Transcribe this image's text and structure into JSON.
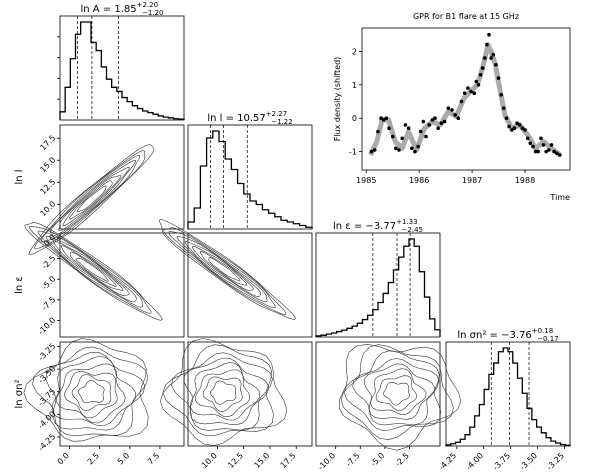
{
  "corner": {
    "params": [
      {
        "label": "ln A",
        "title_main": "ln A = 1.85",
        "title_sup": "+2.20",
        "title_sub": "−1.20",
        "range": [
          -0.8,
          9.5
        ],
        "ticks": [
          "0.0",
          "2.5",
          "5.0",
          "7.5"
        ],
        "tick_vals": [
          0,
          2.5,
          5,
          7.5
        ],
        "quantiles": [
          0.65,
          1.85,
          4.05
        ],
        "hist": [
          2,
          8,
          15,
          21,
          24,
          24,
          19,
          17,
          13,
          10,
          8,
          7,
          5.5,
          4.5,
          3.5,
          2.8,
          2.2,
          1.8,
          1.4,
          1.0,
          0.7,
          0.5,
          0.3,
          0.2
        ]
      },
      {
        "label": "ln l",
        "title_main": "ln l = 10.57",
        "title_sup": "+2.27",
        "title_sub": "−1.22",
        "range": [
          7.2,
          19
        ],
        "ticks": [
          "10.0",
          "12.5",
          "15.0",
          "17.5"
        ],
        "tick_vals": [
          10,
          12.5,
          15,
          17.5
        ],
        "quantiles": [
          9.35,
          10.57,
          12.84
        ],
        "hist": [
          2,
          6,
          18,
          26,
          28,
          25,
          20,
          17,
          13,
          10,
          8,
          7,
          5.5,
          4.5,
          3.5,
          2.5,
          2,
          1.5,
          1,
          0.5
        ]
      },
      {
        "label": "ln ε",
        "title_main": "ln ε = −3.77",
        "title_sup": "+1.33",
        "title_sub": "−2.45",
        "range": [
          -12,
          0.6
        ],
        "ticks": [
          "-10.0",
          "-7.5",
          "-5.0",
          "-2.5"
        ],
        "tick_vals": [
          -10,
          -7.5,
          -5,
          -2.5
        ],
        "quantiles": [
          -6.22,
          -3.77,
          -2.44
        ],
        "hist": [
          0.3,
          0.5,
          0.8,
          1.1,
          1.5,
          1.9,
          2.4,
          3,
          3.8,
          4.8,
          6,
          7.5,
          9.5,
          12,
          15,
          18.5,
          22,
          25,
          27,
          25,
          18,
          11,
          5,
          2
        ]
      },
      {
        "label": "ln σn²",
        "title_main": "ln σn² = −3.76",
        "title_sup": "+0.18",
        "title_sub": "−0.17",
        "range": [
          -4.35,
          -3.2
        ],
        "ticks": [
          "-4.25",
          "-4.00",
          "-3.75",
          "-3.50",
          "-3.25"
        ],
        "tick_vals": [
          -4.25,
          -4,
          -3.75,
          -3.5,
          -3.25
        ],
        "quantiles": [
          -3.93,
          -3.76,
          -3.58
        ],
        "hist": [
          0.3,
          0.6,
          1,
          1.8,
          3,
          5,
          8,
          11,
          15,
          19,
          22,
          25,
          26,
          25,
          22,
          18,
          14,
          10,
          7,
          5,
          3.5,
          2.2,
          1.3,
          0.8,
          0.4,
          0.2
        ]
      }
    ],
    "row_labels": [
      "ln l",
      "ln ε",
      "ln σn²"
    ]
  },
  "chart_data": {
    "type": "scatter",
    "title": "GPR for B1 flare at 15 GHz",
    "xlabel": "Time",
    "ylabel": "Flux density (shifted)",
    "xlim": [
      1984.92,
      1988.85
    ],
    "ylim": [
      -1.55,
      2.7
    ],
    "xticks": [
      1985,
      1986,
      1987,
      1988
    ],
    "yticks": [
      -1,
      0,
      1,
      2
    ],
    "band_color": "#aaaaaa",
    "points_color": "#000000",
    "x": [
      1985.1,
      1985.16,
      1985.22,
      1985.28,
      1985.33,
      1985.38,
      1985.43,
      1985.5,
      1985.56,
      1985.62,
      1985.68,
      1985.74,
      1985.8,
      1985.86,
      1985.92,
      1985.98,
      1986.03,
      1986.08,
      1986.13,
      1986.19,
      1986.25,
      1986.3,
      1986.36,
      1986.42,
      1986.48,
      1986.55,
      1986.62,
      1986.68,
      1986.74,
      1986.8,
      1986.86,
      1986.92,
      1986.98,
      1987.04,
      1987.08,
      1987.12,
      1987.16,
      1987.2,
      1987.24,
      1987.28,
      1987.32,
      1987.36,
      1987.4,
      1987.45,
      1987.5,
      1987.55,
      1987.6,
      1987.65,
      1987.7,
      1987.75,
      1987.8,
      1987.85,
      1987.9,
      1987.95,
      1988.0,
      1988.05,
      1988.1,
      1988.15,
      1988.2,
      1988.25,
      1988.3,
      1988.35,
      1988.4,
      1988.45,
      1988.5,
      1988.55,
      1988.6,
      1988.66
    ],
    "y": [
      -1.0,
      -0.95,
      -0.4,
      0.0,
      -0.05,
      0.0,
      -0.3,
      -0.55,
      -0.9,
      -0.95,
      -0.6,
      -0.2,
      -0.3,
      -0.9,
      -1.0,
      -0.85,
      -0.4,
      -0.1,
      -0.55,
      -0.2,
      -0.05,
      0.0,
      -0.3,
      -0.15,
      -0.1,
      0.3,
      0.25,
      0.1,
      0.0,
      0.5,
      0.75,
      0.9,
      0.8,
      0.75,
      1.1,
      1.0,
      1.3,
      1.5,
      1.8,
      2.2,
      2.5,
      1.8,
      1.9,
      1.6,
      1.2,
      0.7,
      0.3,
      0.0,
      -0.25,
      -0.35,
      -0.3,
      -0.15,
      -0.2,
      -0.3,
      -0.35,
      -0.6,
      -0.75,
      -0.85,
      -1.0,
      -1.0,
      -0.6,
      -0.8,
      -1.0,
      -0.95,
      -0.8,
      -1.0,
      -1.05,
      -1.1
    ],
    "band_x": [
      1985.08,
      1985.2,
      1985.3,
      1985.42,
      1985.55,
      1985.68,
      1985.8,
      1985.95,
      1986.1,
      1986.25,
      1986.4,
      1986.55,
      1986.7,
      1986.85,
      1987.0,
      1987.1,
      1987.18,
      1987.26,
      1987.3,
      1987.36,
      1987.44,
      1987.52,
      1987.62,
      1987.75,
      1987.9,
      1988.05,
      1988.2,
      1988.35,
      1988.5,
      1988.66
    ],
    "band_y": [
      -1.1,
      -0.7,
      -0.05,
      -0.05,
      -0.7,
      -0.9,
      -0.4,
      -0.95,
      -0.3,
      -0.1,
      -0.2,
      0.2,
      0.05,
      0.6,
      0.85,
      1.0,
      1.4,
      1.9,
      2.2,
      2.0,
      1.6,
      0.9,
      0.1,
      -0.3,
      -0.2,
      -0.5,
      -0.9,
      -0.7,
      -0.9,
      -1.1
    ]
  }
}
